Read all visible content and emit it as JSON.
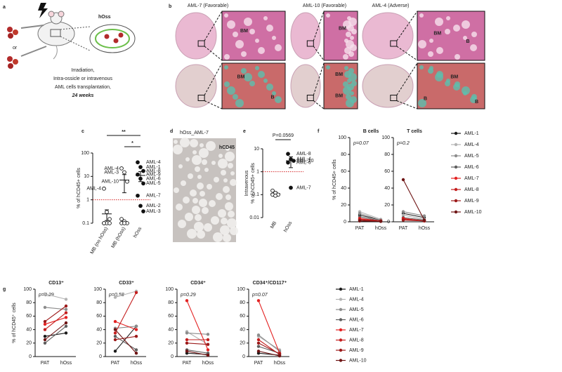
{
  "panel_a": {
    "label": "a",
    "hoss": "hOss",
    "or": "or",
    "caption": [
      "Irradiation,",
      "Intra-ossicle or intravenous",
      "AML cells transplantation,",
      "24 weeks"
    ]
  },
  "panel_b": {
    "label": "b",
    "samples": [
      {
        "title": "AML-7 (Favorable)",
        "labels": [
          "BM",
          "BM",
          "B"
        ]
      },
      {
        "title": "AML-10 (Favorable)",
        "labels": [
          "BM",
          "BM",
          "BM"
        ]
      },
      {
        "title": "AML-4 (Adverse)",
        "labels": [
          "BM",
          "B",
          "BM",
          "B",
          "B"
        ]
      }
    ]
  },
  "panel_c": {
    "label": "c",
    "type": "scatter",
    "log_scale": true,
    "ylabel": "% of hCD45+ cells",
    "ylim": [
      0.1,
      100
    ],
    "yticks": [
      0.1,
      1,
      10,
      100
    ],
    "threshold": 1,
    "significance": [
      "**",
      "*"
    ],
    "groups": [
      {
        "name": "MB (no hOss)",
        "marker": "open",
        "values": [
          3,
          0.3,
          0.15,
          0.1,
          0.1,
          0.1,
          0.1
        ],
        "labels": [
          "AML-4",
          null,
          null,
          null,
          null,
          null,
          null
        ],
        "mean": 0.25,
        "error": 0.12
      },
      {
        "name": "MB (hOss)",
        "marker": "open",
        "values": [
          22,
          15,
          6,
          0.15,
          0.12,
          0.1,
          0.1,
          0.1
        ],
        "labels": [
          "AML-4",
          "AML-3",
          "AML-10",
          null,
          null,
          null,
          null,
          null
        ],
        "mean": 7,
        "error": 5
      },
      {
        "name": "hOss",
        "marker": "filled",
        "values": [
          40,
          25,
          17,
          12,
          8,
          5,
          1.5,
          0.55,
          0.32
        ],
        "labels": [
          "AML-4",
          "AML-1",
          "AML-8",
          "AML-9",
          "AML-6",
          "AML-5",
          "AML-7",
          "AML-2",
          "AML-3"
        ],
        "mean": 11,
        "error": 5
      }
    ]
  },
  "panel_d": {
    "label": "d",
    "title": "hOss_AML-7",
    "stain": "hCD45"
  },
  "panel_e": {
    "label": "e",
    "type": "scatter",
    "log_scale": true,
    "ylabel": [
      "Intravenous",
      "% of hCD45+ cells"
    ],
    "pvalue": "P=0.0569",
    "ylim": [
      0.01,
      10
    ],
    "yticks": [
      0.01,
      0.1,
      1,
      10
    ],
    "threshold": 1,
    "groups": [
      {
        "name": "MB",
        "marker": "open",
        "values": [
          0.15,
          0.12,
          0.1,
          0.1,
          0.09
        ],
        "labels": [
          null,
          null,
          null,
          null,
          null
        ],
        "mean": 0.11,
        "error": 0.02
      },
      {
        "name": "hOss",
        "marker": "filled",
        "values": [
          6,
          3.5,
          3,
          2.5,
          0.2
        ],
        "labels": [
          "AML-8",
          "AML-4",
          "AML-10",
          "AML-6",
          "AML-7"
        ],
        "mean": 3,
        "error": 1.5
      }
    ]
  },
  "series": [
    {
      "name": "AML-1",
      "color": "#1a1a1a"
    },
    {
      "name": "AML-4",
      "color": "#b3b3b3"
    },
    {
      "name": "AML-5",
      "color": "#8c8c8c"
    },
    {
      "name": "AML-6",
      "color": "#5e5e5e"
    },
    {
      "name": "AML-7",
      "color": "#e32222"
    },
    {
      "name": "AML-8",
      "color": "#c41e1e"
    },
    {
      "name": "AML-9",
      "color": "#9c1a1a"
    },
    {
      "name": "AML-10",
      "color": "#6e1414"
    }
  ],
  "panel_f": {
    "label": "f",
    "type": "line",
    "ylabel": "% of hCD45+ cells",
    "categories": [
      "PAT",
      "hOss"
    ],
    "ylim": [
      0,
      100
    ],
    "yticks": [
      0,
      20,
      40,
      60,
      80,
      100
    ],
    "plots": [
      {
        "title": "B cells",
        "pvalue": "p=0.07",
        "values": [
          [
            8,
            2
          ],
          [
            12,
            3
          ],
          [
            10,
            2
          ],
          [
            6,
            1
          ],
          [
            4,
            1
          ],
          [
            3,
            1
          ],
          [
            2,
            0.5
          ],
          [
            1,
            0.5
          ]
        ]
      },
      {
        "title": "T cells",
        "pvalue": "p=0.2",
        "values": [
          [
            10,
            5
          ],
          [
            8,
            3
          ],
          [
            12,
            7
          ],
          [
            5,
            2
          ],
          [
            4,
            1
          ],
          [
            3,
            1
          ],
          [
            2,
            1
          ],
          [
            50,
            2
          ]
        ]
      }
    ]
  },
  "panel_g": {
    "label": "g",
    "type": "line",
    "ylabel": "% of hCD45⁺ cells",
    "categories": [
      "PAT",
      "hOss"
    ],
    "ylim": [
      0,
      100
    ],
    "yticks": [
      0,
      20,
      40,
      60,
      80,
      100
    ],
    "plots": [
      {
        "title": "CD13⁺",
        "pvalue": "p=0.29",
        "values": [
          [
            30,
            35
          ],
          [
            93,
            85
          ],
          [
            73,
            70
          ],
          [
            20,
            45
          ],
          [
            48,
            58
          ],
          [
            40,
            65
          ],
          [
            52,
            75
          ],
          [
            25,
            50
          ]
        ]
      },
      {
        "title": "CD33⁺",
        "pvalue": "p=0.58",
        "values": [
          [
            8,
            45
          ],
          [
            88,
            97
          ],
          [
            42,
            45
          ],
          [
            30,
            10
          ],
          [
            52,
            40
          ],
          [
            35,
            95
          ],
          [
            25,
            30
          ],
          [
            40,
            5
          ]
        ]
      },
      {
        "title": "CD34⁺",
        "pvalue": "p=0.29",
        "values": [
          [
            5,
            3
          ],
          [
            37,
            18
          ],
          [
            35,
            33
          ],
          [
            10,
            5
          ],
          [
            83,
            10
          ],
          [
            25,
            25
          ],
          [
            20,
            18
          ],
          [
            8,
            2
          ]
        ]
      },
      {
        "title": "CD34⁺/CD117⁺",
        "pvalue": "p=0.07",
        "values": [
          [
            5,
            2
          ],
          [
            30,
            10
          ],
          [
            32,
            8
          ],
          [
            15,
            5
          ],
          [
            83,
            5
          ],
          [
            25,
            3
          ],
          [
            20,
            4
          ],
          [
            8,
            1
          ]
        ]
      }
    ]
  }
}
